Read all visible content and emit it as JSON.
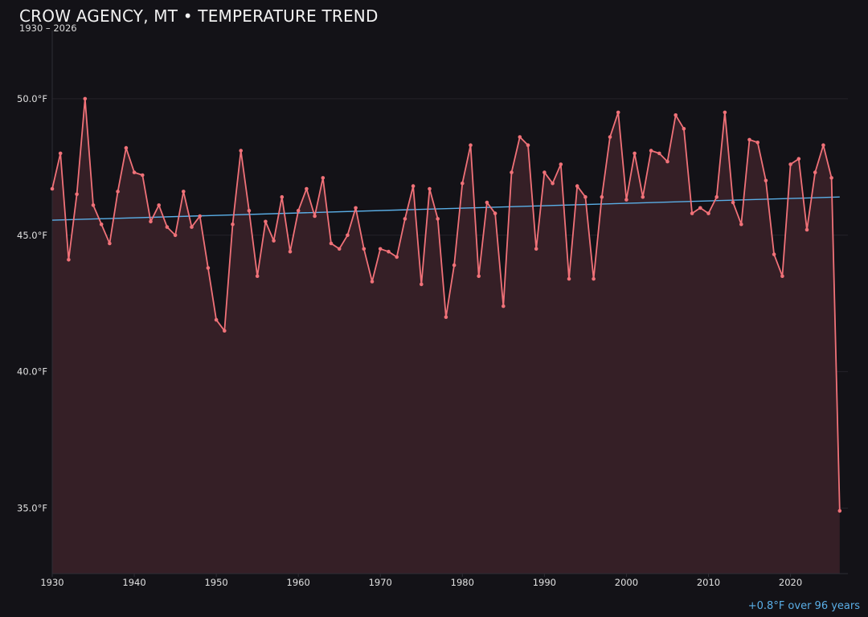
{
  "chart_data": {
    "type": "line",
    "title": "CROW AGENCY, MT • TEMPERATURE TREND",
    "subtitle": "1930 – 2026",
    "footer": "+0.8°F over 96 years",
    "xlabel": "",
    "ylabel": "",
    "xlim": [
      1930,
      2027
    ],
    "ylim": [
      32.6,
      52.5
    ],
    "x_ticks": [
      1930,
      1940,
      1950,
      1960,
      1970,
      1980,
      1990,
      2000,
      2010,
      2020
    ],
    "y_ticks": [
      35.0,
      40.0,
      45.0,
      50.0
    ],
    "y_tick_labels": [
      "35.0°F",
      "40.0°F",
      "45.0°F",
      "50.0°F"
    ],
    "grid": "horizontal",
    "colors": {
      "background": "#131217",
      "series": "#f07178",
      "area_fill": "#351f26",
      "trend": "#5aaee6",
      "grid": "#24232a",
      "axis": "#2e2d35"
    },
    "series": [
      {
        "x": [
          1930,
          1931,
          1932,
          1933,
          1934,
          1935,
          1936,
          1937,
          1938,
          1939,
          1940,
          1941,
          1942,
          1943,
          1944,
          1945,
          1946,
          1947,
          1948,
          1949,
          1950,
          1951,
          1952,
          1953,
          1954,
          1955,
          1956,
          1957,
          1958,
          1959,
          1960,
          1961,
          1962,
          1963,
          1964,
          1965,
          1966,
          1967,
          1968,
          1969,
          1970,
          1971,
          1972,
          1973,
          1974,
          1975,
          1976,
          1977,
          1978,
          1979,
          1980,
          1981,
          1982,
          1983,
          1984,
          1985,
          1986,
          1987,
          1988,
          1989,
          1990,
          1991,
          1992,
          1993,
          1994,
          1995,
          1996,
          1997,
          1998,
          1999,
          2000,
          2001,
          2002,
          2003,
          2004,
          2005,
          2006,
          2007,
          2008,
          2009,
          2010,
          2011,
          2012,
          2013,
          2014,
          2015,
          2016,
          2017,
          2018,
          2019,
          2020,
          2021,
          2022,
          2023,
          2024,
          2025,
          2026
        ],
        "values": [
          46.7,
          48.0,
          44.1,
          46.5,
          50.0,
          46.1,
          45.4,
          44.7,
          46.6,
          48.2,
          47.3,
          47.2,
          45.5,
          46.1,
          45.3,
          45.0,
          46.6,
          45.3,
          45.7,
          43.8,
          41.9,
          41.5,
          45.4,
          48.1,
          45.9,
          43.5,
          45.5,
          44.8,
          46.4,
          44.4,
          45.9,
          46.7,
          45.7,
          47.1,
          44.7,
          44.5,
          45.0,
          46.0,
          44.5,
          43.3,
          44.5,
          44.4,
          44.2,
          45.6,
          46.8,
          43.2,
          46.7,
          45.6,
          42.0,
          43.9,
          46.9,
          48.3,
          43.5,
          46.2,
          45.8,
          42.4,
          47.3,
          48.6,
          48.3,
          44.5,
          47.3,
          46.9,
          47.6,
          43.4,
          46.8,
          46.4,
          43.4,
          46.4,
          48.6,
          49.5,
          46.3,
          48.0,
          46.4,
          48.1,
          48.0,
          47.7,
          49.4,
          48.9,
          45.8,
          46.0,
          45.8,
          46.4,
          49.5,
          46.2,
          45.4,
          48.5,
          48.4,
          47.0,
          44.3,
          43.5,
          47.6,
          47.8,
          45.2,
          47.3,
          48.3,
          47.1,
          34.9
        ]
      }
    ],
    "trend": {
      "x": [
        1930,
        2026
      ],
      "values": [
        45.55,
        46.4
      ]
    }
  }
}
